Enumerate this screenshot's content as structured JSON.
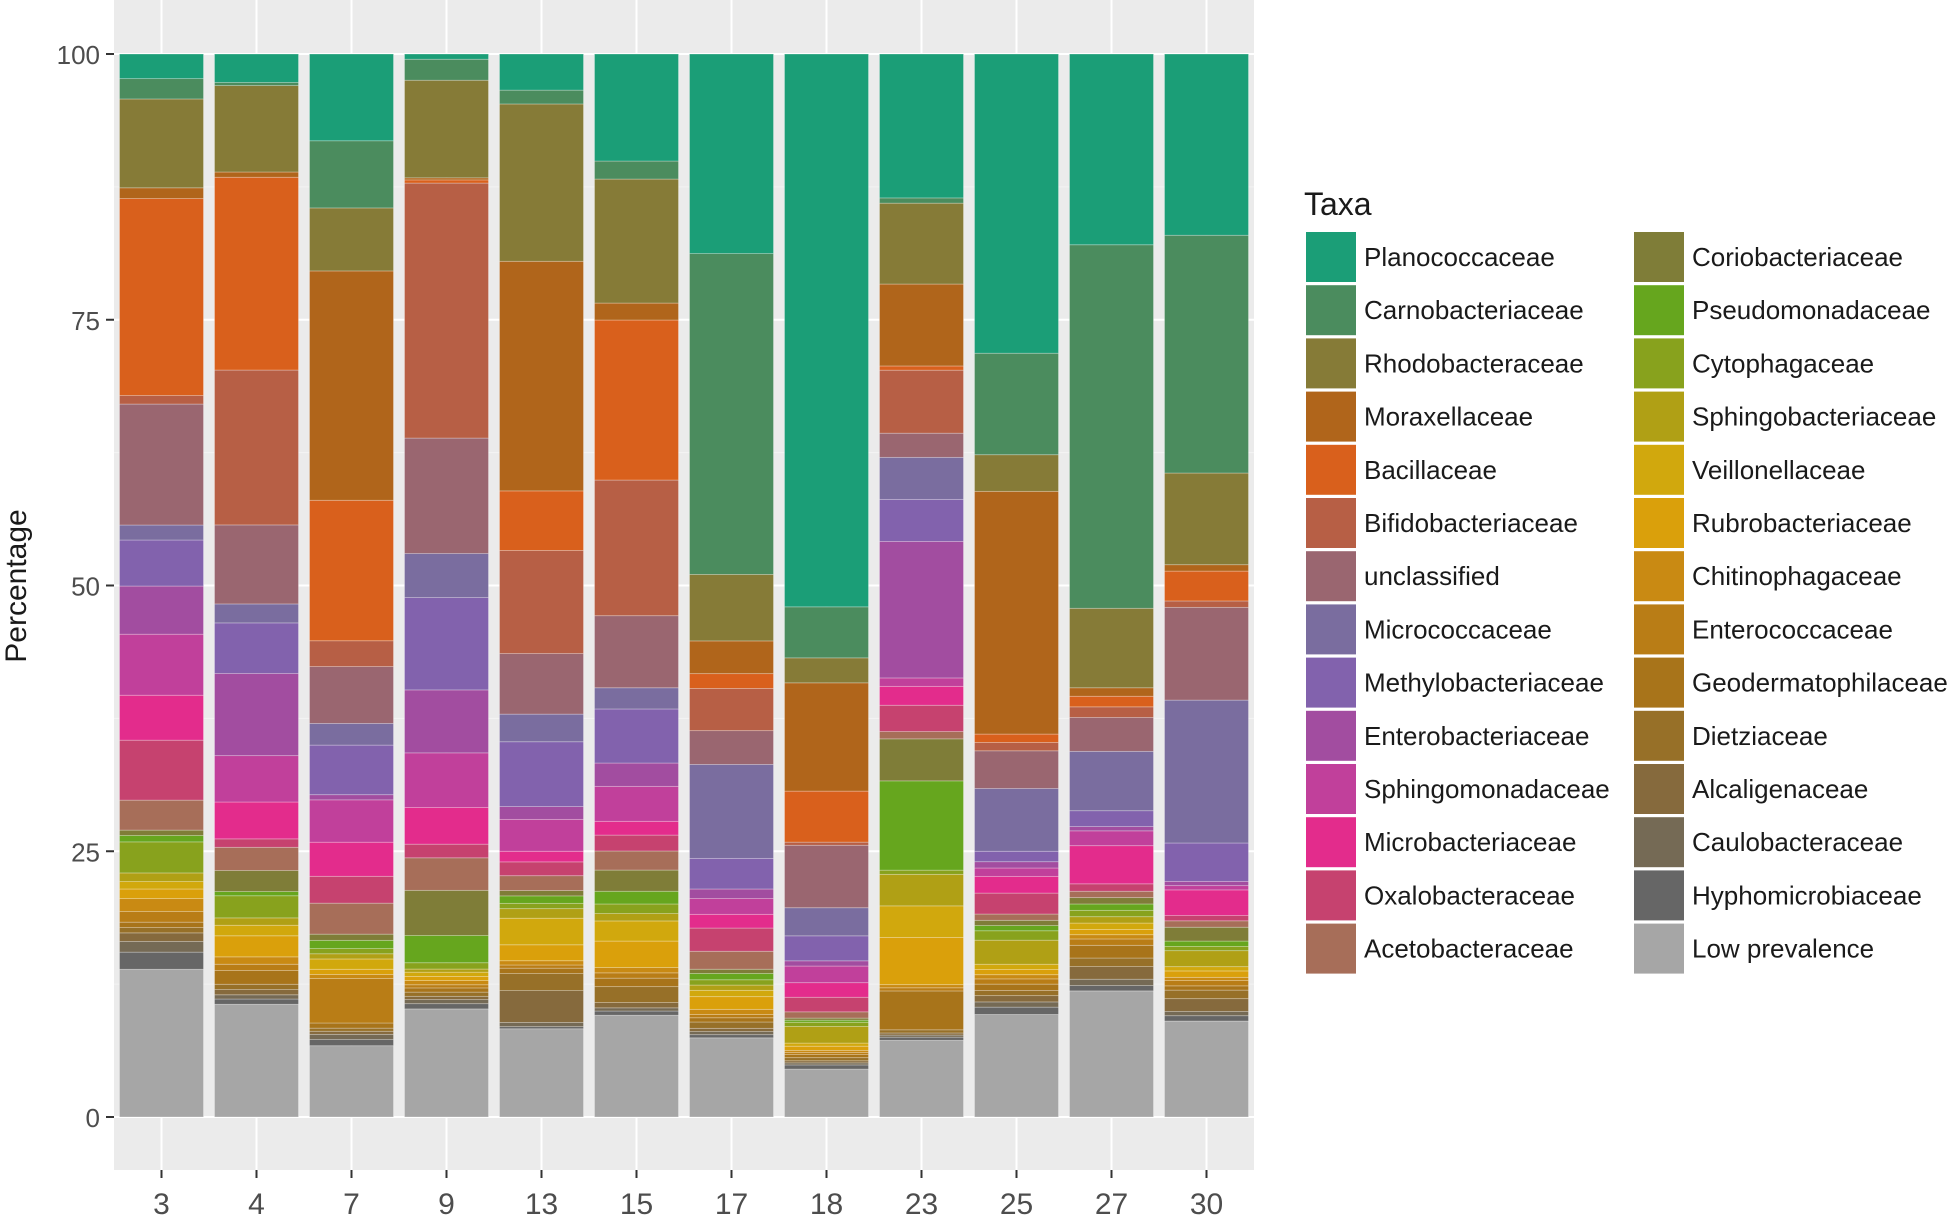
{
  "chart_data": {
    "type": "bar",
    "stacked": true,
    "xlabel": "",
    "ylabel": "Percentage",
    "ylim": [
      0,
      100
    ],
    "yticks": [
      0,
      25,
      50,
      75,
      100
    ],
    "grid": true,
    "legend_title": "Taxa",
    "legend_position": "right",
    "categories": [
      "3",
      "4",
      "7",
      "9",
      "13",
      "15",
      "17",
      "18",
      "23",
      "25",
      "27",
      "30"
    ],
    "series": [
      {
        "name": "Low prevalence",
        "color": "#a6a6a6",
        "values": [
          13.8,
          10.7,
          6.9,
          10.3,
          8.3,
          9.6,
          7.5,
          4.6,
          7.3,
          9.8,
          11.9,
          9.0
        ]
      },
      {
        "name": "Hyphomicrobiaceae",
        "color": "#666666",
        "values": [
          1.6,
          0.5,
          0.6,
          0.5,
          0.2,
          0.4,
          0.3,
          0.4,
          0.3,
          0.7,
          0.5,
          0.5
        ]
      },
      {
        "name": "Caulobacteraceae",
        "color": "#756a55",
        "values": [
          1.0,
          0.4,
          0.5,
          0.4,
          0.4,
          0.3,
          0.3,
          0.2,
          0.2,
          0.5,
          0.6,
          0.4
        ]
      },
      {
        "name": "Alcaligenaceae",
        "color": "#866a3d",
        "values": [
          0.8,
          0.5,
          0.3,
          0.3,
          3.0,
          0.5,
          0.3,
          0.2,
          0.2,
          0.6,
          1.2,
          1.2
        ]
      },
      {
        "name": "Dietziaceae",
        "color": "#977028",
        "values": [
          0.5,
          0.5,
          0.3,
          0.4,
          1.6,
          1.5,
          0.6,
          0.3,
          0.3,
          0.5,
          0.8,
          0.8
        ]
      },
      {
        "name": "Geodermatophilaceae",
        "color": "#a8741a",
        "values": [
          0.5,
          1.3,
          0.5,
          0.4,
          0.5,
          0.8,
          0.4,
          0.3,
          3.7,
          0.6,
          1.2,
          0.4
        ]
      },
      {
        "name": "Enterococcaceae",
        "color": "#b97d16",
        "values": [
          1.0,
          0.6,
          4.3,
          0.3,
          0.3,
          0.5,
          0.3,
          0.2,
          0.3,
          0.5,
          0.6,
          0.5
        ]
      },
      {
        "name": "Chitinophagaceae",
        "color": "#c98a13",
        "values": [
          1.2,
          0.7,
          0.4,
          0.4,
          0.4,
          0.5,
          0.5,
          0.2,
          0.3,
          0.4,
          0.4,
          0.3
        ]
      },
      {
        "name": "Rubrobacteriaceae",
        "color": "#daa00b",
        "values": [
          0.9,
          2.0,
          0.5,
          0.4,
          1.5,
          2.5,
          1.2,
          0.4,
          4.5,
          0.5,
          0.5,
          0.6
        ]
      },
      {
        "name": "Veillonellaceae",
        "color": "#d1a80d",
        "values": [
          0.7,
          1.0,
          1.0,
          0.4,
          2.5,
          1.9,
          0.6,
          0.3,
          3.0,
          0.5,
          0.6,
          0.4
        ]
      },
      {
        "name": "Sphingobacteriaceae",
        "color": "#b0a015",
        "values": [
          0.8,
          0.7,
          0.5,
          0.3,
          0.9,
          0.7,
          0.5,
          1.6,
          3.0,
          2.3,
          0.6,
          1.5
        ]
      },
      {
        "name": "Cytophagaceae",
        "color": "#88a21d",
        "values": [
          2.9,
          2.1,
          0.5,
          0.6,
          0.5,
          0.9,
          0.5,
          0.4,
          0.4,
          0.9,
          0.6,
          0.4
        ]
      },
      {
        "name": "Pseudomonadaceae",
        "color": "#66a61e",
        "values": [
          0.6,
          0.4,
          0.8,
          2.6,
          0.7,
          1.2,
          0.6,
          0.2,
          8.5,
          0.5,
          0.6,
          0.5
        ]
      },
      {
        "name": "Coriobacteriaceae",
        "color": "#7f7d38",
        "values": [
          0.5,
          2.0,
          0.6,
          4.3,
          0.5,
          2.0,
          0.4,
          0.2,
          4.0,
          0.5,
          0.6,
          1.3
        ]
      },
      {
        "name": "Acetobacteraceae",
        "color": "#a76e59",
        "values": [
          2.8,
          2.2,
          3.0,
          3.1,
          1.4,
          1.8,
          1.7,
          0.6,
          0.7,
          0.6,
          0.6,
          0.6
        ]
      },
      {
        "name": "Oxalobacteraceae",
        "color": "#c6426f",
        "values": [
          5.6,
          0.8,
          2.6,
          1.3,
          1.3,
          1.5,
          2.2,
          1.4,
          2.5,
          2.0,
          0.7,
          0.5
        ]
      },
      {
        "name": "Microbacteriaceae",
        "color": "#e32c8c",
        "values": [
          4.2,
          3.5,
          3.3,
          3.5,
          1.0,
          1.3,
          1.3,
          1.4,
          1.8,
          1.6,
          3.6,
          2.4
        ]
      },
      {
        "name": "Sphingomonadaceae",
        "color": "#c1409b",
        "values": [
          5.7,
          4.4,
          4.1,
          5.2,
          3.0,
          3.3,
          1.5,
          1.6,
          0.8,
          0.8,
          1.4,
          0.4
        ]
      },
      {
        "name": "Enterobacteriaceae",
        "color": "#a24da0",
        "values": [
          4.5,
          7.8,
          0.5,
          6.0,
          1.2,
          2.2,
          0.9,
          0.5,
          13.0,
          0.6,
          0.4,
          0.4
        ]
      },
      {
        "name": "Methylobacteriaceae",
        "color": "#8262ad",
        "values": [
          4.3,
          4.8,
          4.8,
          8.8,
          6.1,
          5.1,
          2.9,
          2.4,
          4.0,
          1.0,
          1.5,
          3.6
        ]
      },
      {
        "name": "Micrococcaceae",
        "color": "#7a6d9f",
        "values": [
          1.4,
          1.8,
          2.1,
          4.2,
          2.6,
          2.0,
          8.9,
          2.7,
          4.0,
          6.0,
          5.6,
          13.4
        ]
      },
      {
        "name": "unclassified",
        "color": "#9a6670",
        "values": [
          11.3,
          7.5,
          5.5,
          11.0,
          5.7,
          6.8,
          3.2,
          6.0,
          2.3,
          3.6,
          3.2,
          8.7
        ]
      },
      {
        "name": "Bifidobacteriaceae",
        "color": "#b75f45",
        "values": [
          0.8,
          14.7,
          2.5,
          24.3,
          9.7,
          12.8,
          4.0,
          0.3,
          6.0,
          0.8,
          1.0,
          0.6
        ]
      },
      {
        "name": "Bacillaceae",
        "color": "#d9601c",
        "values": [
          18.4,
          18.3,
          13.6,
          0.3,
          5.6,
          15.1,
          1.4,
          4.9,
          0.4,
          0.8,
          1.0,
          2.8
        ]
      },
      {
        "name": "Moraxellaceae",
        "color": "#b0651b",
        "values": [
          1.0,
          0.5,
          22.2,
          0.2,
          21.6,
          1.6,
          3.1,
          10.4,
          7.8,
          23.2,
          0.8,
          0.6
        ]
      },
      {
        "name": "Rhodobacteraceae",
        "color": "#867b37",
        "values": [
          8.3,
          8.2,
          6.1,
          9.3,
          14.8,
          11.7,
          6.3,
          2.4,
          7.7,
          3.5,
          7.5,
          8.6
        ]
      },
      {
        "name": "Carnobacteriaceae",
        "color": "#4b8c5e",
        "values": [
          1.9,
          0.3,
          6.5,
          2.0,
          1.3,
          1.7,
          30.4,
          4.9,
          0.5,
          9.7,
          34.3,
          22.3
        ]
      },
      {
        "name": "Planococcaceae",
        "color": "#1b9e77",
        "values": [
          2.3,
          2.7,
          8.4,
          0.5,
          3.4,
          10.1,
          18.9,
          53.1,
          13.7,
          28.6,
          18.0,
          17.0
        ]
      }
    ],
    "legend": [
      "Planococcaceae",
      "Carnobacteriaceae",
      "Rhodobacteraceae",
      "Moraxellaceae",
      "Bacillaceae",
      "Bifidobacteriaceae",
      "unclassified",
      "Micrococcaceae",
      "Methylobacteriaceae",
      "Enterobacteriaceae",
      "Sphingomonadaceae",
      "Microbacteriaceae",
      "Oxalobacteraceae",
      "Acetobacteraceae",
      "Coriobacteriaceae",
      "Pseudomonadaceae",
      "Cytophagaceae",
      "Sphingobacteriaceae",
      "Veillonellaceae",
      "Rubrobacteriaceae",
      "Chitinophagaceae",
      "Enterococcaceae",
      "Geodermatophilaceae",
      "Dietziaceae",
      "Alcaligenaceae",
      "Caulobacteraceae",
      "Hyphomicrobiaceae",
      "Low prevalence"
    ]
  }
}
